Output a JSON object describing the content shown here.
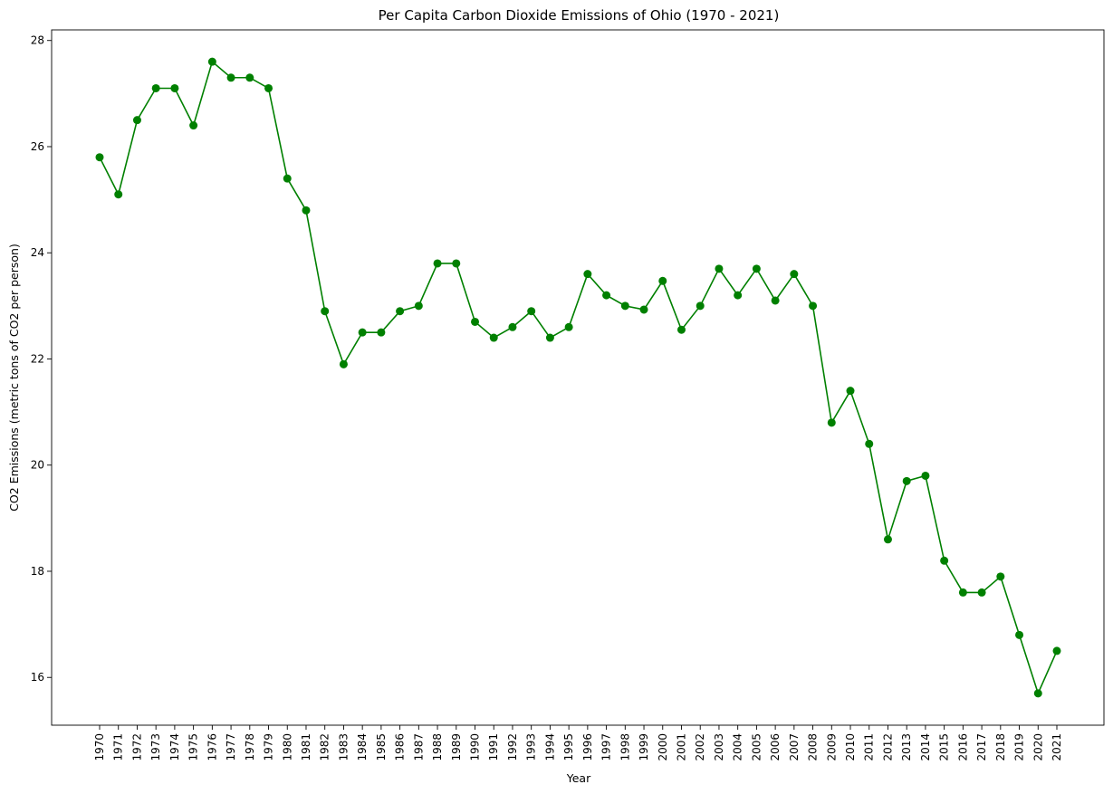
{
  "chart_data": {
    "type": "line",
    "title": "Per Capita Carbon Dioxide Emissions of Ohio (1970 - 2021)",
    "xlabel": "Year",
    "ylabel": "CO2 Emissions (metric tons of CO2 per person)",
    "x": [
      "1970",
      "1971",
      "1972",
      "1973",
      "1974",
      "1975",
      "1976",
      "1977",
      "1978",
      "1979",
      "1980",
      "1981",
      "1982",
      "1983",
      "1984",
      "1985",
      "1986",
      "1987",
      "1988",
      "1989",
      "1990",
      "1991",
      "1992",
      "1993",
      "1994",
      "1995",
      "1996",
      "1997",
      "1998",
      "1999",
      "2000",
      "2001",
      "2002",
      "2003",
      "2004",
      "2005",
      "2006",
      "2007",
      "2008",
      "2009",
      "2010",
      "2011",
      "2012",
      "2013",
      "2014",
      "2015",
      "2016",
      "2017",
      "2018",
      "2019",
      "2020",
      "2021"
    ],
    "values": [
      25.8,
      25.1,
      26.5,
      27.1,
      27.1,
      26.4,
      27.6,
      27.3,
      27.3,
      27.1,
      25.4,
      24.8,
      22.9,
      21.9,
      22.5,
      22.5,
      22.9,
      23.0,
      23.8,
      23.8,
      22.7,
      22.4,
      22.6,
      22.9,
      22.4,
      22.6,
      23.6,
      23.2,
      23.0,
      22.93,
      23.47,
      22.55,
      23.0,
      23.7,
      23.2,
      23.7,
      23.1,
      23.6,
      23.0,
      20.8,
      21.4,
      20.4,
      18.6,
      19.7,
      19.8,
      18.2,
      17.6,
      17.6,
      17.9,
      16.8,
      15.7,
      16.5
    ],
    "yticks": [
      16,
      18,
      20,
      22,
      24,
      26,
      28
    ],
    "ylim": [
      15.1,
      28.2
    ],
    "color": "#008000",
    "marker": "circle",
    "grid": false,
    "legend": "none"
  }
}
